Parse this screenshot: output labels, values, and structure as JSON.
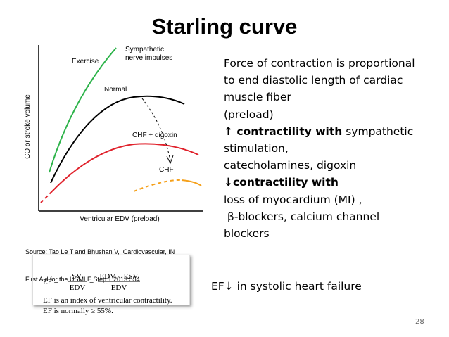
{
  "title": "Starling curve",
  "figure": {
    "y_label": "CO or stroke volume",
    "x_label": "Ventricular EDV (preload)",
    "curve_labels": {
      "exercise": "Exercise",
      "sympathetic": [
        "Sympathetic",
        "nerve impulses"
      ],
      "normal": "Normal",
      "chf_digoxin": "CHF + digoxin",
      "chf": "CHF"
    }
  },
  "source": [
    "Source: Tao Le T and Bhushan V,  Cardiovascular, IN",
    "First Aid for the USMLE Step 1 2013:554"
  ],
  "formula": {
    "lhs": "EF =",
    "sv": "SV",
    "edv": "EDV",
    "eq": "=",
    "diff": "EDV − ESV",
    "edv2": "EDV",
    "note1": "EF is an index of ventricular contractility.",
    "note2": "EF is normally ≥ 55%."
  },
  "body_lines": [
    [
      {
        "text": "Force of contraction is proportional",
        "bold": false
      }
    ],
    [
      {
        "text": "to end diastolic length of cardiac",
        "bold": false
      }
    ],
    [
      {
        "text": "muscle fiber",
        "bold": false
      }
    ],
    [
      {
        "text": "(preload)",
        "bold": false
      }
    ],
    [
      {
        "text": "↑ contractility with",
        "bold": true
      },
      {
        "text": " sympathetic",
        "bold": false
      }
    ],
    [
      {
        "text": "stimulation,",
        "bold": false
      }
    ],
    [
      {
        "text": "catecholamines, digoxin",
        "bold": false
      }
    ],
    [
      {
        "text": "↓contractility with",
        "bold": true
      }
    ],
    [
      {
        "text": "loss of myocardium (MI) ,",
        "bold": false
      }
    ],
    [
      {
        "text": " β-blockers, calcium channel",
        "bold": false
      }
    ],
    [
      {
        "text": "blockers",
        "bold": false
      }
    ]
  ],
  "ef_note": "EF↓ in systolic heart failure",
  "page_number": "28"
}
